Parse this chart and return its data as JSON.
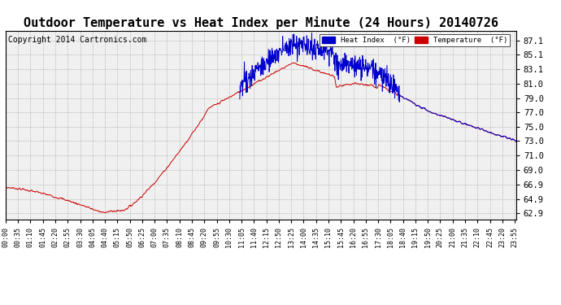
{
  "title": "Outdoor Temperature vs Heat Index per Minute (24 Hours) 20140726",
  "copyright": "Copyright 2014 Cartronics.com",
  "legend_heat": "Heat Index  (°F)",
  "legend_temp": "Temperature  (°F)",
  "heat_color": "#0000cc",
  "temp_color": "#cc0000",
  "yticks": [
    62.9,
    64.9,
    66.9,
    69.0,
    71.0,
    73.0,
    75.0,
    77.0,
    79.0,
    81.0,
    83.1,
    85.1,
    87.1
  ],
  "ytick_labels": [
    "62.9",
    "64.9",
    "66.9",
    "69.0",
    "71.0",
    "73.0",
    "75.0",
    "77.0",
    "79.0",
    "81.0",
    "83.1",
    "85.1",
    "87.1"
  ],
  "ylim": [
    62.0,
    88.5
  ],
  "background_color": "#ffffff",
  "plot_bg_color": "#f0f0f0",
  "title_fontsize": 11,
  "copyright_fontsize": 7,
  "xtick_step": 35
}
